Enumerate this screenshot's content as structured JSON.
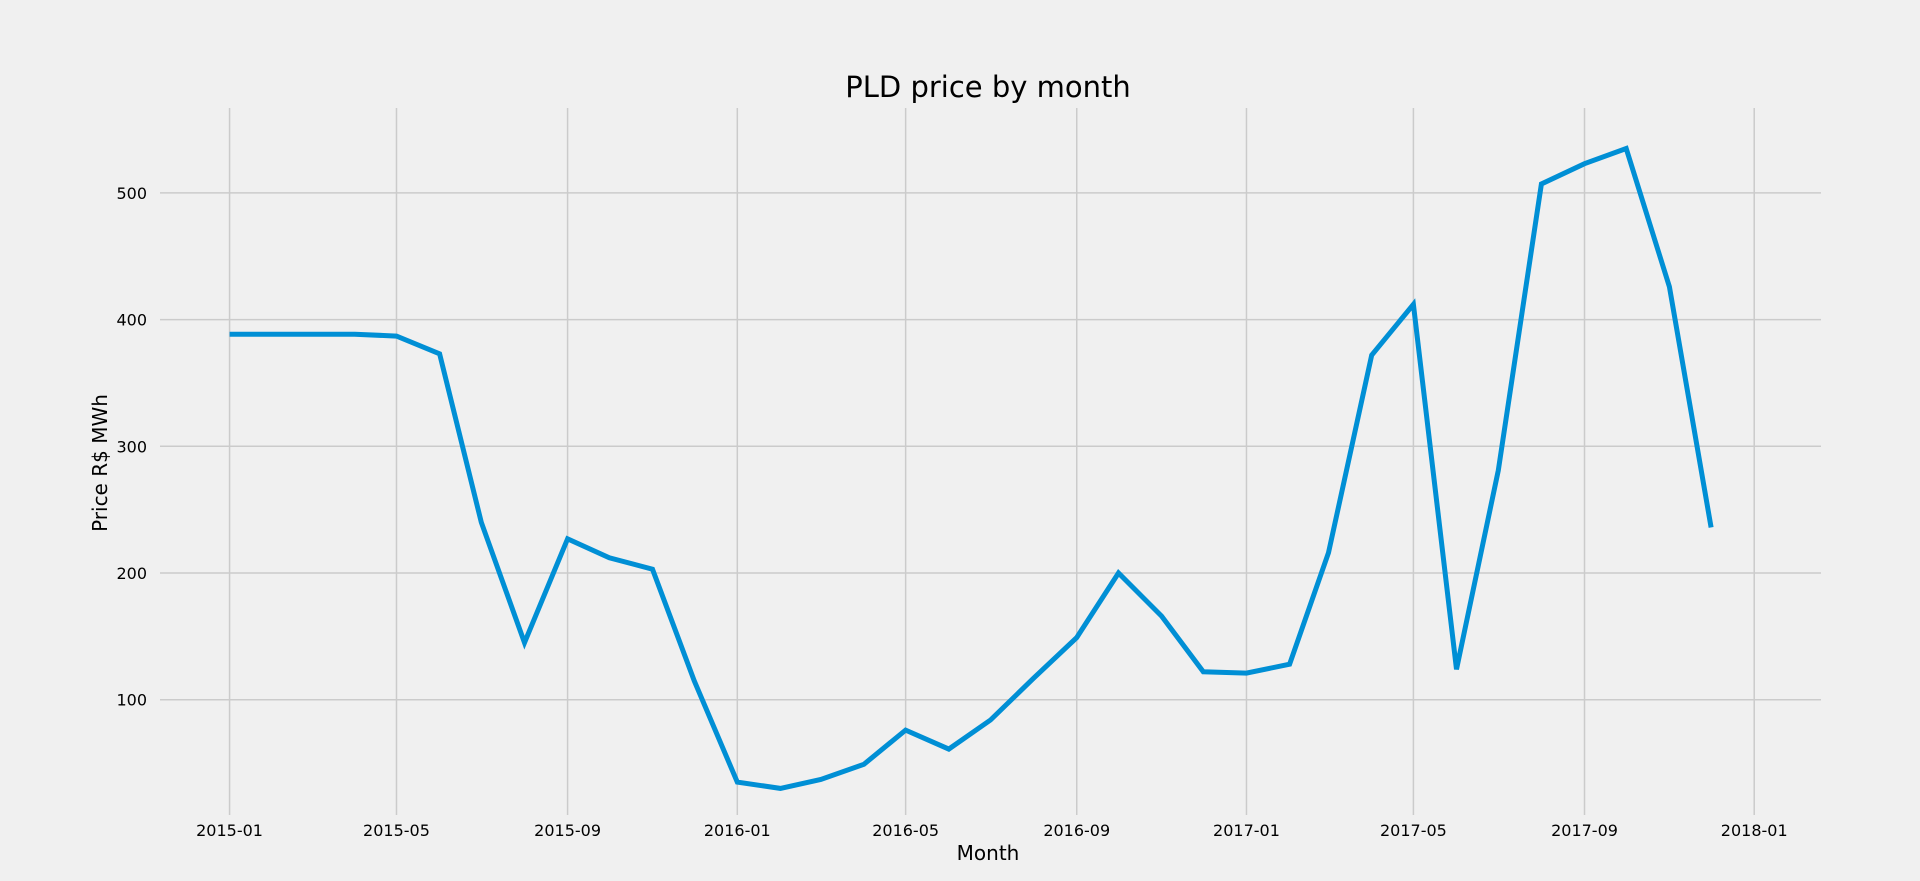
{
  "chart_data": {
    "type": "line",
    "title": "PLD price by month",
    "xlabel": "Month",
    "ylabel": "Price R$ MWh",
    "x_ticks": [
      "2015-01",
      "2015-05",
      "2015-09",
      "2016-01",
      "2016-05",
      "2016-09",
      "2017-01",
      "2017-05",
      "2017-09",
      "2018-01"
    ],
    "y_ticks": [
      100,
      200,
      300,
      400,
      500
    ],
    "xlim": [
      "2014-11-12",
      "2018-02-18"
    ],
    "ylim": [
      9,
      567
    ],
    "grid": true,
    "colors": {
      "background": "#f0f0f0",
      "grid": "#cbcbcb",
      "line": "#008fd5"
    },
    "series": [
      {
        "x": [
          "2015-01",
          "2015-02",
          "2015-03",
          "2015-04",
          "2015-05",
          "2015-06",
          "2015-07",
          "2015-08",
          "2015-09",
          "2015-10",
          "2015-11",
          "2015-12",
          "2016-01",
          "2016-02",
          "2016-03",
          "2016-04",
          "2016-05",
          "2016-06",
          "2016-07",
          "2016-08",
          "2016-09",
          "2016-10",
          "2016-11",
          "2016-12",
          "2017-01",
          "2017-02",
          "2017-03",
          "2017-04",
          "2017-05",
          "2017-06",
          "2017-07",
          "2017-08",
          "2017-09",
          "2017-10",
          "2017-11",
          "2017-12"
        ],
        "values": [
          388.5,
          388.5,
          388.5,
          388.5,
          387,
          373,
          240,
          145,
          227,
          212,
          203,
          115,
          35,
          30,
          37,
          49,
          76,
          61,
          84,
          117,
          149,
          200,
          166,
          122,
          121,
          128,
          216,
          372,
          412,
          124,
          281,
          507,
          523,
          535,
          426,
          236
        ]
      }
    ]
  }
}
